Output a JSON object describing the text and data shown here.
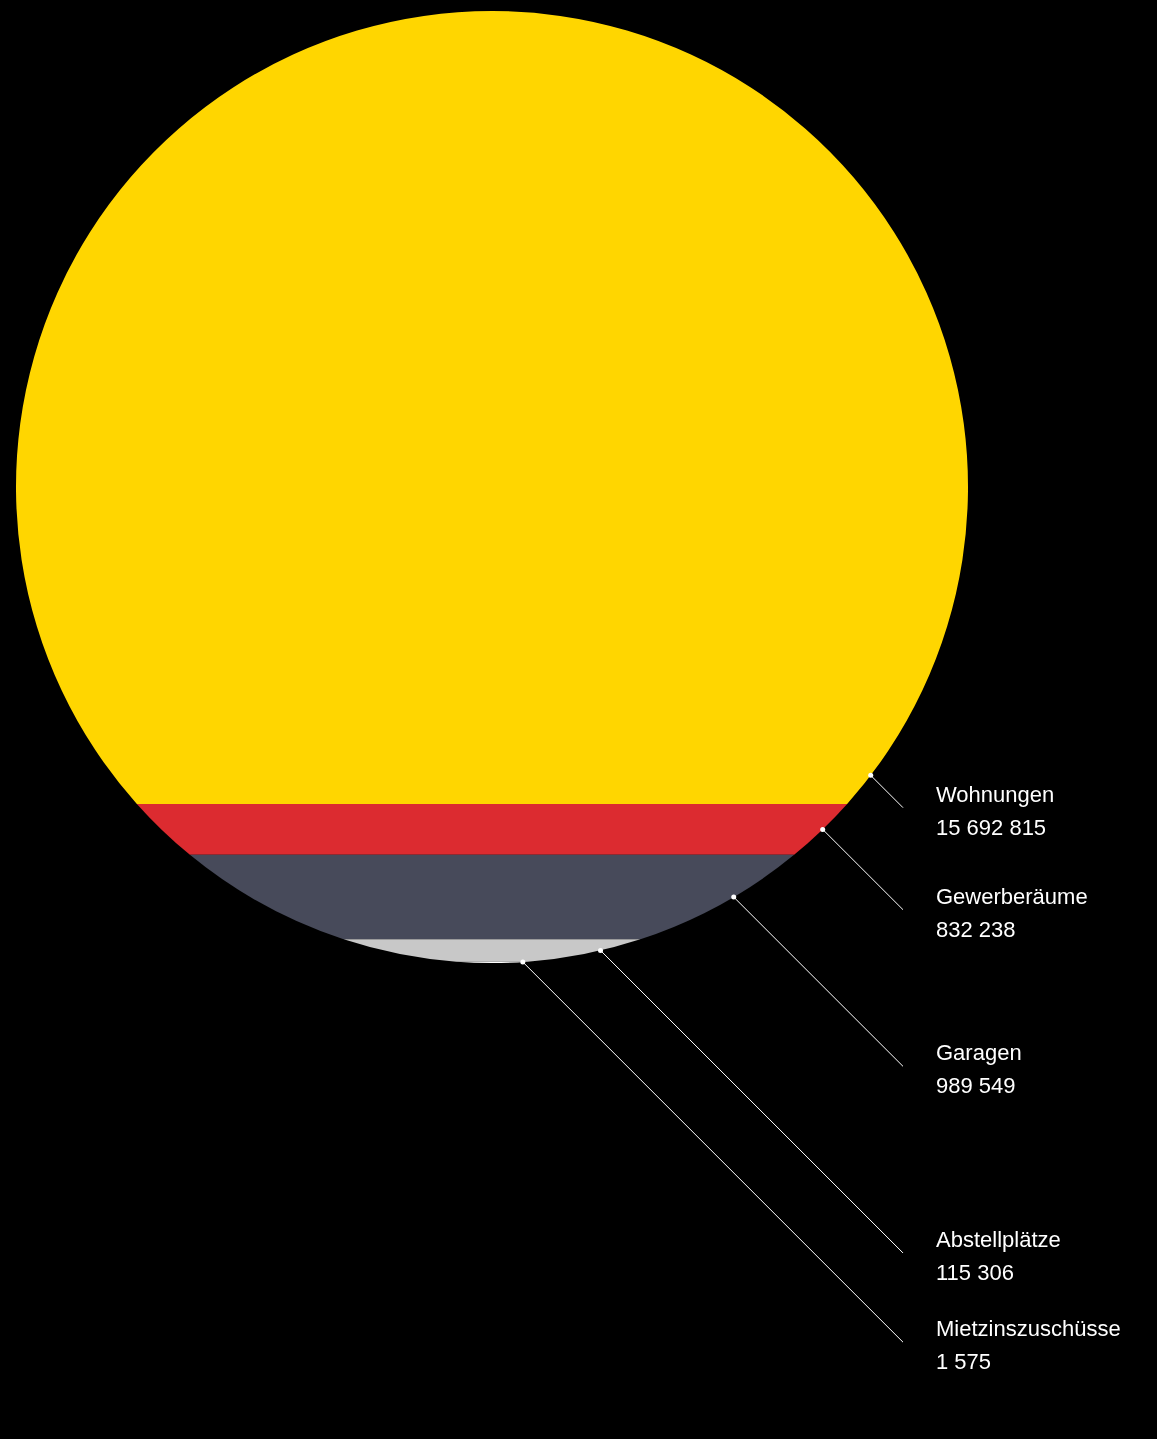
{
  "chart_data": {
    "type": "other",
    "categories": [
      "Wohnungen",
      "Gewerberäume",
      "Garagen",
      "Abstellplätze",
      "Mietzinszuschüsse"
    ],
    "values": [
      15692815,
      832238,
      989549,
      115306,
      1575
    ],
    "value_labels": [
      "15 692 815",
      "832 238",
      "989 549",
      "115 306",
      "1 575"
    ],
    "colors": [
      "#ffd600",
      "#dc2b30",
      "#474a5a",
      "#c8c8c8",
      "#ffffff"
    ]
  }
}
